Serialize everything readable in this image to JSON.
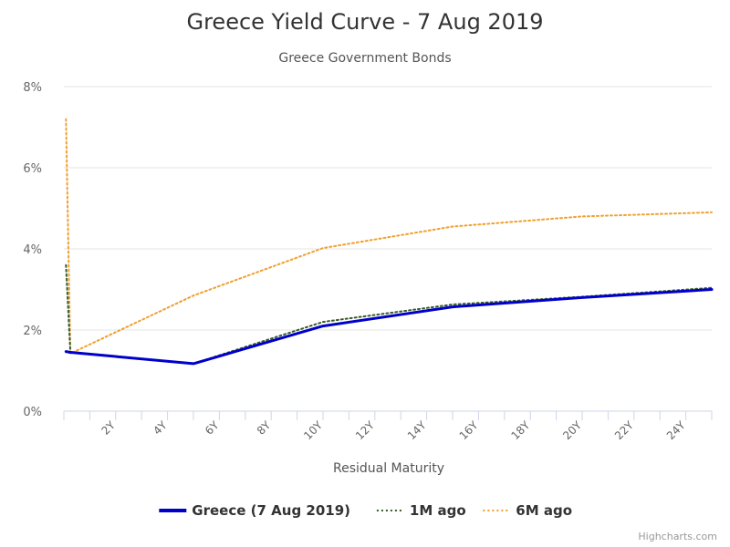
{
  "chart_data": {
    "type": "line",
    "title": "Greece Yield Curve - 7 Aug 2019",
    "subtitle": "Greece Government Bonds",
    "xlabel": "Residual Maturity",
    "ylabel": "",
    "xlim": [
      0,
      25
    ],
    "ylim": [
      0,
      8
    ],
    "x_unit": "years",
    "y_unit": "%",
    "grid": true,
    "legend_position": "bottom-center",
    "y_ticks": [
      {
        "value": 0,
        "label": "0%"
      },
      {
        "value": 2,
        "label": "2%"
      },
      {
        "value": 4,
        "label": "4%"
      },
      {
        "value": 6,
        "label": "6%"
      },
      {
        "value": 8,
        "label": "8%"
      }
    ],
    "x_ticks": [
      {
        "value": 2,
        "label": "2Y"
      },
      {
        "value": 4,
        "label": "4Y"
      },
      {
        "value": 6,
        "label": "6Y"
      },
      {
        "value": 8,
        "label": "8Y"
      },
      {
        "value": 10,
        "label": "10Y"
      },
      {
        "value": 12,
        "label": "12Y"
      },
      {
        "value": 14,
        "label": "14Y"
      },
      {
        "value": 16,
        "label": "16Y"
      },
      {
        "value": 18,
        "label": "18Y"
      },
      {
        "value": 20,
        "label": "20Y"
      },
      {
        "value": 22,
        "label": "22Y"
      },
      {
        "value": 24,
        "label": "24Y"
      }
    ],
    "series": [
      {
        "name": "Greece (7 Aug 2019)",
        "color": "#0000cc",
        "style": "solid",
        "x": [
          0.08,
          0.25,
          5,
          10,
          15,
          20,
          25
        ],
        "values": [
          1.47,
          1.45,
          1.17,
          2.1,
          2.57,
          2.8,
          3.0
        ]
      },
      {
        "name": "1M ago",
        "color": "#3a5a2a",
        "style": "dotted",
        "x": [
          0.08,
          0.25,
          5,
          10,
          15,
          20,
          25
        ],
        "values": [
          3.6,
          1.46,
          1.17,
          2.2,
          2.63,
          2.82,
          3.04
        ]
      },
      {
        "name": "6M ago",
        "color": "#f0a030",
        "style": "dotted",
        "x": [
          0.08,
          0.25,
          5,
          10,
          15,
          20,
          25
        ],
        "values": [
          7.2,
          1.42,
          2.85,
          4.02,
          4.55,
          4.8,
          4.9
        ]
      }
    ]
  },
  "credits": "Highcharts.com"
}
